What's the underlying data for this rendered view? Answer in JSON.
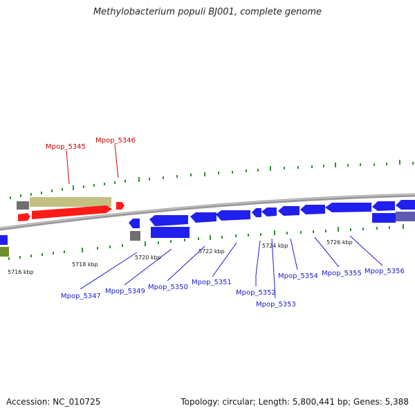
{
  "title": "Methylobacterium populi BJ001, complete genome",
  "footer": {
    "accession": "Accession: NC_010725",
    "topology": "Topology: circular; Length: 5,800,441 bp; Genes: 5,388"
  },
  "colors": {
    "forward": "#ff1a1a",
    "reverse": "#1a1aee",
    "gray": "#777777",
    "khaki": "#c8c48a",
    "olive": "#6e8e2a",
    "backbone": "#8a8a8a",
    "tick": "#2f8f2f",
    "label_red": "#cc0000",
    "label_blue": "#1a1acc"
  },
  "ticks": [
    "5716 kbp",
    "5718 kbp",
    "5720 kbp",
    "5722 kbp",
    "5724 kbp",
    "5726 kbp"
  ],
  "genes": {
    "forward": [
      "Mpop_5345",
      "Mpop_5346"
    ],
    "reverse": [
      "Mpop_5347",
      "Mpop_5349",
      "Mpop_5350",
      "Mpop_5351",
      "Mpop_5352",
      "Mpop_5353",
      "Mpop_5354",
      "Mpop_5355",
      "Mpop_5356"
    ]
  }
}
